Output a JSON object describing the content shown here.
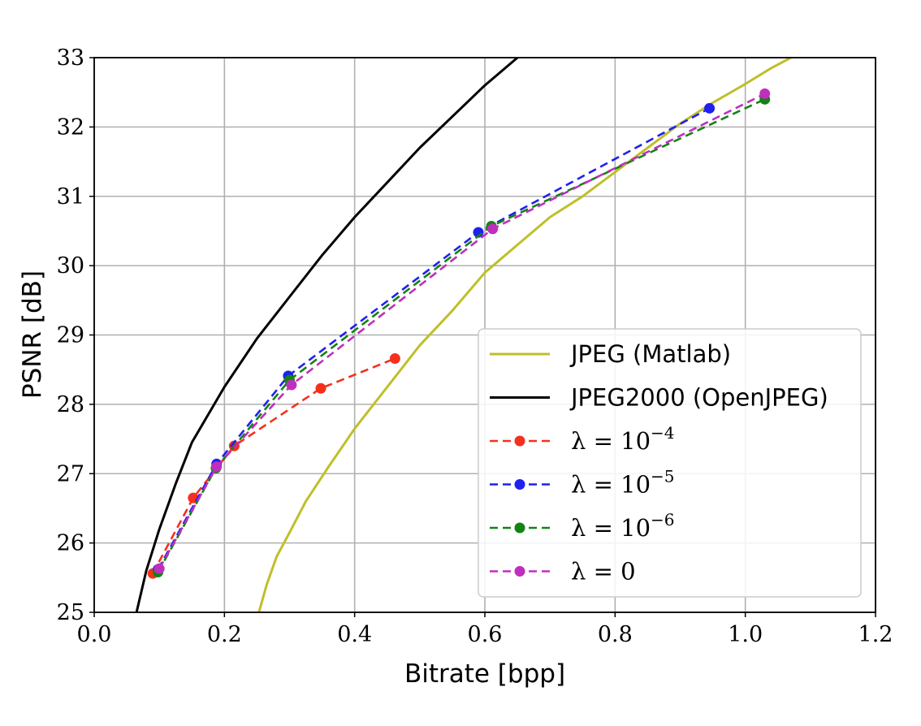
{
  "chart_data": {
    "type": "line",
    "xlabel": "Bitrate [bpp]",
    "ylabel": "PSNR [dB]",
    "xlim": [
      0.0,
      1.2
    ],
    "ylim": [
      25,
      33
    ],
    "grid": true,
    "legend_position": "lower-right",
    "x_ticks": [
      "0.0",
      "0.2",
      "0.4",
      "0.6",
      "0.8",
      "1.0",
      "1.2"
    ],
    "y_ticks": [
      "25",
      "26",
      "27",
      "28",
      "29",
      "30",
      "31",
      "32",
      "33"
    ],
    "series": [
      {
        "name": "JPEG (Matlab)",
        "color": "#bfbf2a",
        "style": "solid",
        "markers": false,
        "x": [
          0.253,
          0.265,
          0.28,
          0.3,
          0.325,
          0.36,
          0.4,
          0.45,
          0.5,
          0.55,
          0.6,
          0.65,
          0.7,
          0.75,
          0.8,
          0.85,
          0.9,
          0.95,
          1.0,
          1.04,
          1.07
        ],
        "y": [
          25.0,
          25.4,
          25.8,
          26.15,
          26.6,
          27.1,
          27.65,
          28.25,
          28.85,
          29.35,
          29.9,
          30.3,
          30.7,
          31.0,
          31.35,
          31.7,
          32.05,
          32.35,
          32.62,
          32.85,
          33.0
        ]
      },
      {
        "name": "JPEG2000 (OpenJPEG)",
        "color": "#000000",
        "style": "solid",
        "markers": false,
        "x": [
          0.065,
          0.08,
          0.1,
          0.125,
          0.15,
          0.2,
          0.25,
          0.3,
          0.35,
          0.4,
          0.45,
          0.5,
          0.55,
          0.6,
          0.65
        ],
        "y": [
          25.0,
          25.6,
          26.2,
          26.85,
          27.45,
          28.25,
          28.95,
          29.55,
          30.15,
          30.7,
          31.2,
          31.7,
          32.15,
          32.6,
          33.0
        ]
      },
      {
        "name": "λ = 10⁻⁴",
        "color": "#f5301e",
        "style": "dashed",
        "markers": true,
        "x": [
          0.09,
          0.152,
          0.215,
          0.348,
          0.462
        ],
        "y": [
          25.56,
          26.65,
          27.4,
          28.23,
          28.66
        ]
      },
      {
        "name": "λ = 10⁻⁵",
        "color": "#2020f0",
        "style": "dashed",
        "markers": true,
        "x": [
          0.098,
          0.188,
          0.298,
          0.59,
          0.945
        ],
        "y": [
          25.62,
          27.14,
          28.41,
          30.48,
          32.27
        ]
      },
      {
        "name": "λ = 10⁻⁶",
        "color": "#138313",
        "style": "dashed",
        "markers": true,
        "x": [
          0.098,
          0.187,
          0.3,
          0.61,
          1.03
        ],
        "y": [
          25.58,
          27.08,
          28.35,
          30.57,
          32.4
        ]
      },
      {
        "name": "λ = 0",
        "color": "#bf2fbf",
        "style": "dashed",
        "markers": true,
        "x": [
          0.1,
          0.188,
          0.303,
          0.612,
          1.03
        ],
        "y": [
          25.63,
          27.1,
          28.28,
          30.53,
          32.48
        ]
      }
    ]
  },
  "legend": {
    "items": [
      {
        "label": "JPEG (Matlab)",
        "math": false
      },
      {
        "label": "JPEG2000 (OpenJPEG)",
        "math": false
      },
      {
        "label": "λ = 10",
        "exp": "−4",
        "math": true
      },
      {
        "label": "λ = 10",
        "exp": "−5",
        "math": true
      },
      {
        "label": "λ = 10",
        "exp": "−6",
        "math": true
      },
      {
        "label": "λ = 0",
        "exp": "",
        "math": true
      }
    ]
  }
}
